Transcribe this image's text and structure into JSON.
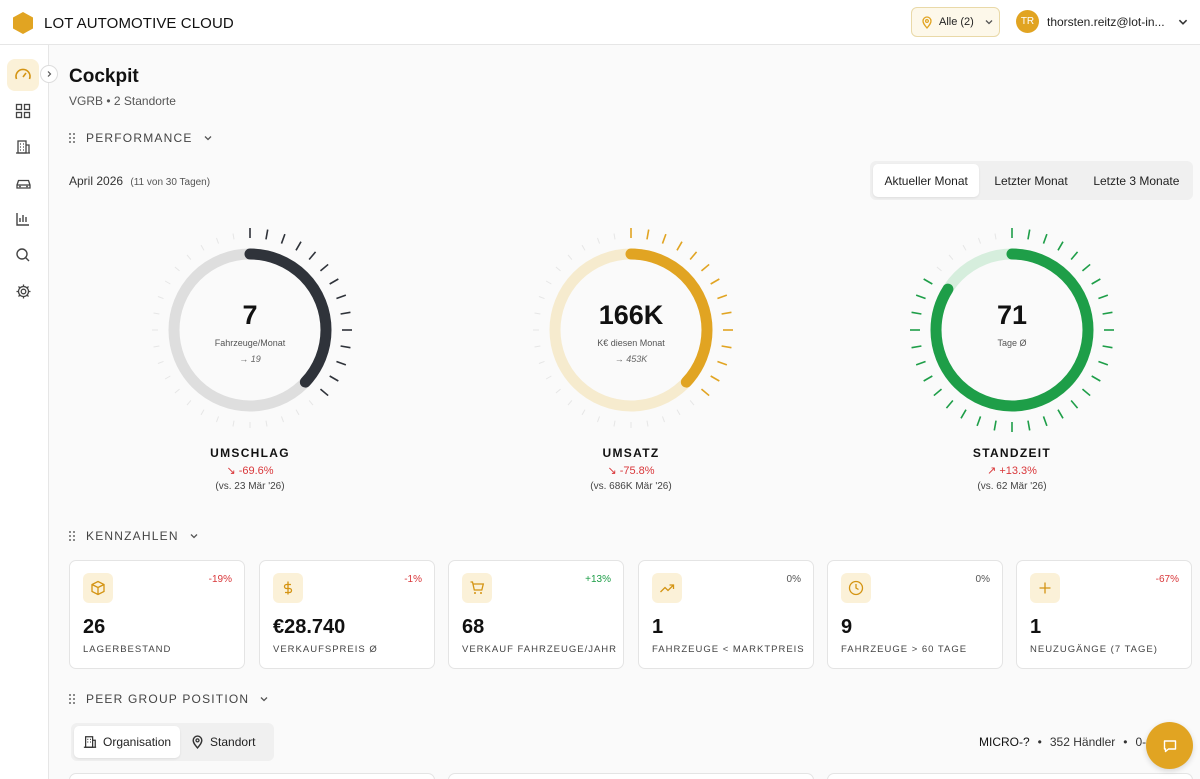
{
  "header": {
    "brand_title": "LOT AUTOMOTIVE CLOUD",
    "location_filter": "Alle (2)",
    "user_initials": "TR",
    "user_email": "thorsten.reitz@lot-in..."
  },
  "sidebar": {
    "items": [
      {
        "icon": "speedometer-icon",
        "active": true
      },
      {
        "icon": "grid-icon",
        "active": false
      },
      {
        "icon": "buildings-icon",
        "active": false
      },
      {
        "icon": "car-icon",
        "active": false
      },
      {
        "icon": "bar-chart-icon",
        "active": false
      },
      {
        "icon": "search-icon",
        "active": false
      },
      {
        "icon": "gear-icon",
        "active": false
      }
    ]
  },
  "page": {
    "title": "Cockpit",
    "subtitle": "VGRB • 2 Standorte"
  },
  "performance": {
    "section_label": "PERFORMANCE",
    "period_label": "April 2026",
    "period_detail": "(11 von 30 Tagen)",
    "tabs": [
      "Aktueller Monat",
      "Letzter Monat",
      "Letzte 3 Monate"
    ],
    "active_tab": "Aktueller Monat",
    "gauges": [
      {
        "value": "7",
        "unit": "Fahrzeuge/Monat",
        "prev": "→ 19",
        "label": "UMSCHLAG",
        "delta": "↘ -69.6%",
        "compare": "(vs. 23 Mär '26)",
        "fill": 0.37,
        "color": "#2f333a",
        "track": "#dedede"
      },
      {
        "value": "166K",
        "unit": "K€ diesen Monat",
        "prev": "→ 453K",
        "label": "UMSATZ",
        "delta": "↘ -75.8%",
        "compare": "(vs. 686K Mär '26)",
        "fill": 0.37,
        "color": "#e1a422",
        "track": "#f6ebce"
      },
      {
        "value": "71",
        "unit": "Tage Ø",
        "prev": "",
        "label": "STANDZEIT",
        "delta": "↗ +13.3%",
        "compare": "(vs. 62 Mär '26)",
        "fill": 0.84,
        "color": "#1e9e48",
        "track": "#d6eedd"
      }
    ]
  },
  "kpis": {
    "section_label": "KENNZAHLEN",
    "cards": [
      {
        "icon": "box-icon",
        "delta": "-19%",
        "delta_color": "#d9373a",
        "value": "26",
        "label": "LAGERBESTAND"
      },
      {
        "icon": "dollar-icon",
        "delta": "-1%",
        "delta_color": "#d9373a",
        "value": "€28.740",
        "label": "VERKAUFSPREIS Ø"
      },
      {
        "icon": "cart-icon",
        "delta": "+13%",
        "delta_color": "#1e9e48",
        "value": "68",
        "label": "VERKAUF FAHRZEUGE/JAHR"
      },
      {
        "icon": "trend-up-icon",
        "delta": "0%",
        "delta_color": "#555555",
        "value": "1",
        "label": "FAHRZEUGE < MARKTPREIS"
      },
      {
        "icon": "clock-icon",
        "delta": "0%",
        "delta_color": "#555555",
        "value": "9",
        "label": "FAHRZEUGE > 60 TAGE"
      },
      {
        "icon": "plus-icon",
        "delta": "-67%",
        "delta_color": "#d9373a",
        "value": "1",
        "label": "NEUZUGÄNGE (7 TAGE)"
      }
    ]
  },
  "peer": {
    "section_label": "PEER GROUP POSITION",
    "tabs": [
      "Organisation",
      "Standort"
    ],
    "active_tab": "Organisation",
    "segment": "MICRO-?",
    "dealers": "352 Händler",
    "range": "0-0"
  },
  "colors": {
    "accent": "#e1a422",
    "accent_soft": "#fbf1d8",
    "negative": "#d9373a",
    "positive": "#1e9e48"
  }
}
